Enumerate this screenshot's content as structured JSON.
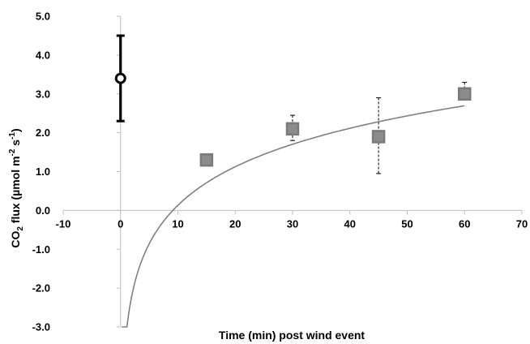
{
  "chart_data": {
    "type": "scatter",
    "xlabel": "Time (min) post wind event",
    "ylabel": {
      "prefix": "CO",
      "sub": "2",
      "middle": " flux (µmol m",
      "sup1": "-2",
      "between": " s",
      "sup2": "-1",
      "suffix": ")"
    },
    "xlim": [
      -10,
      70
    ],
    "ylim": [
      -3.0,
      5.0
    ],
    "x_ticks": [
      "-10",
      "0",
      "10",
      "20",
      "30",
      "40",
      "50",
      "60",
      "70"
    ],
    "x_tick_values": [
      -10,
      0,
      10,
      20,
      30,
      40,
      50,
      60,
      70
    ],
    "y_ticks": [
      "-3.0",
      "-2.0",
      "-1.0",
      "0.0",
      "1.0",
      "2.0",
      "3.0",
      "4.0",
      "5.0"
    ],
    "y_tick_values": [
      -3,
      -2,
      -1,
      0,
      1,
      2,
      3,
      4,
      5
    ],
    "grid": false,
    "series": [
      {
        "marker": "circle",
        "color": "#000000",
        "error_style": "solid",
        "points": [
          {
            "x": 0,
            "y": 3.4,
            "err_low": 2.3,
            "err_high": 4.5
          }
        ]
      },
      {
        "marker": "square",
        "color": "#8c8c8c",
        "edge_color": "#7a7a7a",
        "error_style": "dashed",
        "points": [
          {
            "x": 15,
            "y": 1.3,
            "err_low": 1.3,
            "err_high": 1.3
          },
          {
            "x": 30,
            "y": 2.1,
            "err_low": 1.8,
            "err_high": 2.45
          },
          {
            "x": 45,
            "y": 1.9,
            "err_low": 0.95,
            "err_high": 2.9
          },
          {
            "x": 60,
            "y": 3.0,
            "err_low": 2.9,
            "err_high": 3.3
          }
        ]
      }
    ],
    "trendline": {
      "type": "logarithmic",
      "color": "#808080",
      "a": 1.43,
      "b": -3.16,
      "x_range": [
        0.2,
        60
      ]
    }
  }
}
